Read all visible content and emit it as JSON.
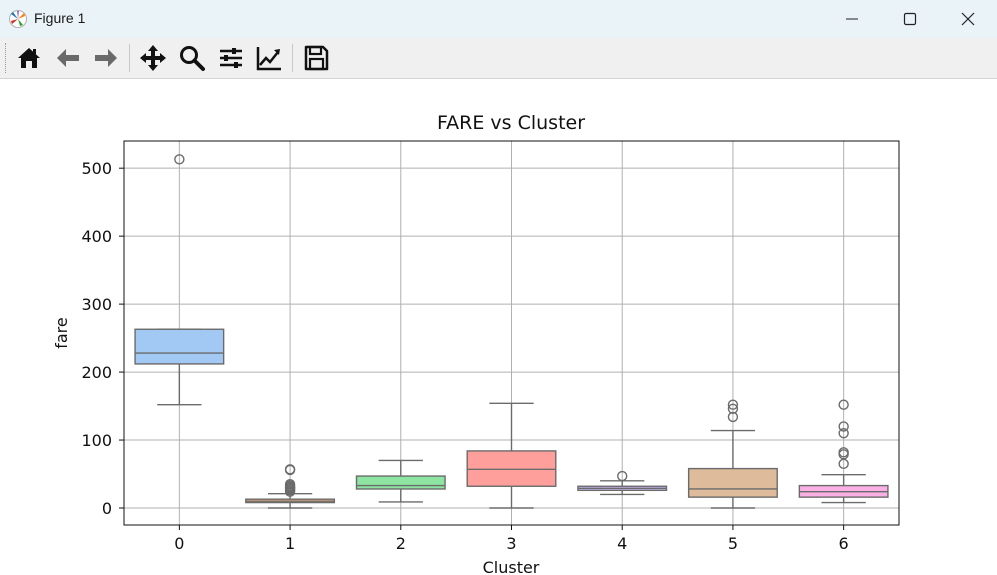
{
  "window": {
    "title": "Figure 1",
    "controls": [
      "minimize",
      "maximize",
      "close"
    ]
  },
  "toolbar": {
    "buttons": [
      {
        "name": "home-icon",
        "tooltip": "Reset original view"
      },
      {
        "name": "back-arrow-icon",
        "tooltip": "Back to previous view"
      },
      {
        "name": "forward-arrow-icon",
        "tooltip": "Forward to next view"
      },
      {
        "name": "pan-icon",
        "tooltip": "Pan axes"
      },
      {
        "name": "zoom-icon",
        "tooltip": "Zoom to rectangle"
      },
      {
        "name": "subplots-icon",
        "tooltip": "Configure subplots"
      },
      {
        "name": "edit-axis-icon",
        "tooltip": "Edit axis, curve and image parameters"
      },
      {
        "name": "save-icon",
        "tooltip": "Save the figure"
      }
    ]
  },
  "chart_data": {
    "type": "box",
    "title": "FARE vs Cluster",
    "xlabel": "Cluster",
    "ylabel": "fare",
    "categories": [
      "0",
      "1",
      "2",
      "3",
      "4",
      "5",
      "6"
    ],
    "ylim": [
      -25,
      540
    ],
    "yticks": [
      0,
      100,
      200,
      300,
      400,
      500
    ],
    "grid": true,
    "boxes": [
      {
        "category": "0",
        "whisker_low": 152,
        "q1": 212,
        "median": 228,
        "q3": 263,
        "whisker_high": 263,
        "outliers": [
          513
        ],
        "color": "#a1c9f4"
      },
      {
        "category": "1",
        "whisker_low": 0,
        "q1": 8,
        "median": 10,
        "q3": 13,
        "whisker_high": 21,
        "outliers": [
          24,
          26,
          27,
          29,
          30,
          31,
          33,
          35,
          56,
          57
        ],
        "color": "#ffb482"
      },
      {
        "category": "2",
        "whisker_low": 9,
        "q1": 28,
        "median": 33,
        "q3": 47,
        "whisker_high": 70,
        "outliers": [],
        "color": "#8de5a1"
      },
      {
        "category": "3",
        "whisker_low": 0,
        "q1": 32,
        "median": 57,
        "q3": 84,
        "whisker_high": 154,
        "outliers": [],
        "color": "#ff9f9b"
      },
      {
        "category": "4",
        "whisker_low": 20,
        "q1": 26,
        "median": 29,
        "q3": 32,
        "whisker_high": 40,
        "outliers": [
          47
        ],
        "color": "#d0bbff"
      },
      {
        "category": "5",
        "whisker_low": 0,
        "q1": 16,
        "median": 28,
        "q3": 58,
        "whisker_high": 114,
        "outliers": [
          134,
          146,
          152
        ],
        "color": "#debb9b"
      },
      {
        "category": "6",
        "whisker_low": 8,
        "q1": 16,
        "median": 24,
        "q3": 33,
        "whisker_high": 49,
        "outliers": [
          65,
          79,
          82,
          110,
          120,
          152
        ],
        "color": "#fab0e4"
      }
    ]
  }
}
